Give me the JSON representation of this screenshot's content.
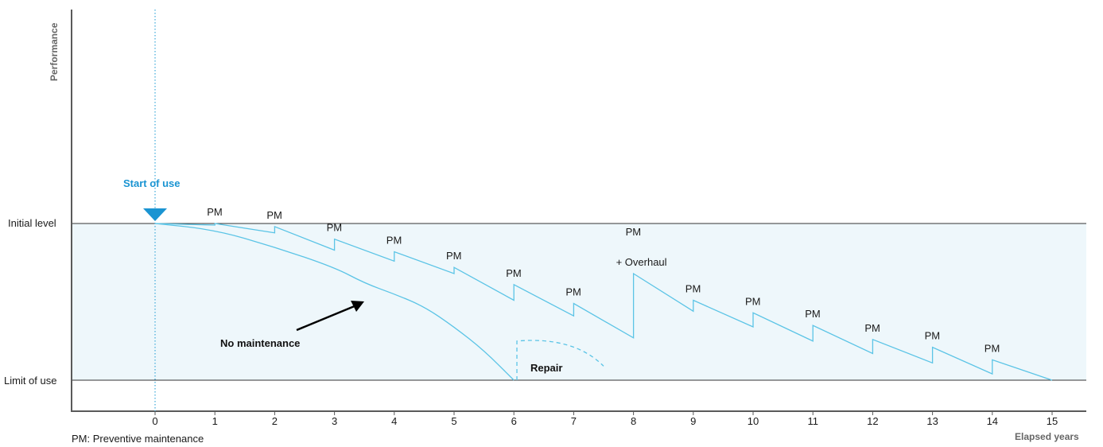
{
  "chart_data": {
    "type": "line",
    "ylabel": "Performance",
    "xlabel": "Elapsed years",
    "x_ticks": [
      "0",
      "1",
      "2",
      "3",
      "4",
      "5",
      "6",
      "7",
      "8",
      "9",
      "10",
      "11",
      "12",
      "13",
      "14",
      "15"
    ],
    "y_levels": {
      "initial_label": "Initial level",
      "limit_label": "Limit of use"
    },
    "start_label": "Start of use",
    "pm_labels": [
      {
        "year": 1,
        "text": "PM"
      },
      {
        "year": 2,
        "text": "PM"
      },
      {
        "year": 3,
        "text": "PM"
      },
      {
        "year": 4,
        "text": "PM"
      },
      {
        "year": 5,
        "text": "PM"
      },
      {
        "year": 6,
        "text": "PM"
      },
      {
        "year": 7,
        "text": "PM"
      },
      {
        "year": 8,
        "text": "PM"
      },
      {
        "year": 9,
        "text": "PM"
      },
      {
        "year": 10,
        "text": "PM"
      },
      {
        "year": 11,
        "text": "PM"
      },
      {
        "year": 12,
        "text": "PM"
      },
      {
        "year": 13,
        "text": "PM"
      },
      {
        "year": 14,
        "text": "PM"
      }
    ],
    "overhaul_label": "+ Overhaul",
    "no_maintenance_label": "No maintenance",
    "repair_label": "Repair",
    "series": [
      {
        "name": "with PM",
        "points": [
          [
            0,
            1.0
          ],
          [
            1,
            0.99
          ],
          [
            1,
            1.0
          ],
          [
            2,
            0.94
          ],
          [
            2,
            0.98
          ],
          [
            3,
            0.83
          ],
          [
            3,
            0.9
          ],
          [
            4,
            0.76
          ],
          [
            4,
            0.82
          ],
          [
            5,
            0.68
          ],
          [
            5,
            0.72
          ],
          [
            6,
            0.51
          ],
          [
            6,
            0.61
          ],
          [
            7,
            0.41
          ],
          [
            7,
            0.49
          ],
          [
            8,
            0.27
          ],
          [
            8,
            0.68
          ],
          [
            9,
            0.44
          ],
          [
            9,
            0.51
          ],
          [
            10,
            0.34
          ],
          [
            10,
            0.43
          ],
          [
            11,
            0.25
          ],
          [
            11,
            0.35
          ],
          [
            12,
            0.17
          ],
          [
            12,
            0.26
          ],
          [
            13,
            0.11
          ],
          [
            13,
            0.21
          ],
          [
            14,
            0.04
          ],
          [
            14,
            0.13
          ],
          [
            15,
            0.0
          ]
        ]
      },
      {
        "name": "No maintenance",
        "points": [
          [
            0,
            1.0
          ],
          [
            1,
            0.96
          ],
          [
            2,
            0.85
          ],
          [
            3,
            0.72
          ],
          [
            3.5,
            0.62
          ],
          [
            4,
            0.55
          ],
          [
            4.5,
            0.47
          ],
          [
            5,
            0.34
          ],
          [
            5.5,
            0.19
          ],
          [
            6,
            0.0
          ]
        ]
      },
      {
        "name": "Repair",
        "points": [
          [
            6.05,
            0.0
          ],
          [
            6.05,
            0.25
          ],
          [
            6.5,
            0.23
          ],
          [
            7,
            0.19
          ],
          [
            7.5,
            0.09
          ]
        ]
      }
    ],
    "notes": {
      "footnote": "PM: Preventive maintenance"
    },
    "colors": {
      "curve": "#5bc4e6",
      "band": "#eef7fb",
      "marker": "#1a94d2",
      "axis": "#5a5a5a"
    },
    "grid": false
  }
}
